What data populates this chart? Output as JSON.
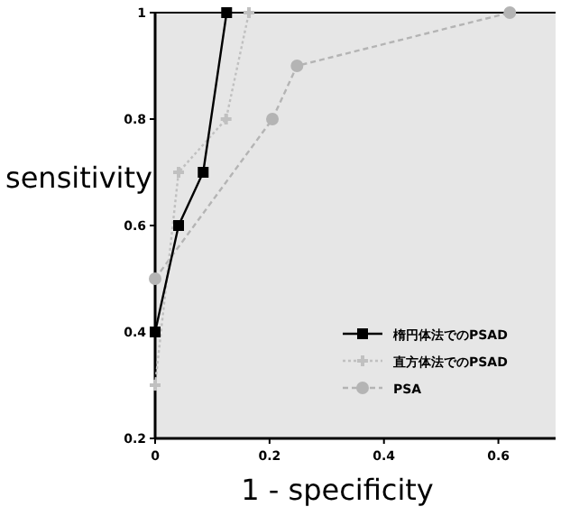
{
  "chart_data": {
    "type": "line",
    "xlabel": "1 - specificity",
    "ylabel": "sensitivity",
    "xlim": [
      0,
      0.7
    ],
    "ylim": [
      0.2,
      1
    ],
    "xticks": [
      0,
      0.2,
      0.4,
      0.6
    ],
    "yticks": [
      0.2,
      0.4,
      0.6,
      0.8,
      1
    ],
    "grid": false,
    "legend": "bottom right",
    "series": [
      {
        "name": "楕円体法でのPSAD",
        "color": "#000000",
        "marker": "square",
        "line_style": "solid",
        "x": [
          0,
          0.041,
          0.084,
          0.125
        ],
        "values": [
          0.4,
          0.6,
          0.7,
          1
        ]
      },
      {
        "name": "直方体法でのPSAD",
        "color": "#c0c0c0",
        "marker": "cross",
        "line_style": "dotted",
        "x": [
          0,
          0.041,
          0.124,
          0.164
        ],
        "values": [
          0.3,
          0.7,
          0.8,
          1
        ]
      },
      {
        "name": "PSA",
        "color": "#b4b4b4",
        "marker": "circle",
        "line_style": "dashed",
        "x": [
          0,
          0.205,
          0.248,
          0.62
        ],
        "values": [
          0.5,
          0.8,
          0.9,
          1
        ]
      }
    ]
  }
}
